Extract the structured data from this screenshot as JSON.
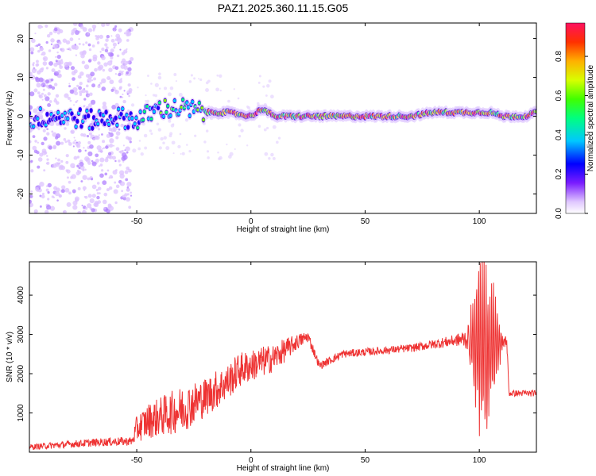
{
  "title": "PAZ1.2025.360.11.15.G05",
  "chart_data": [
    {
      "type": "heatmap",
      "xlabel": "Height of straight line (km)",
      "ylabel": "Frequency (Hz)",
      "xlim": [
        -97,
        125
      ],
      "ylim": [
        -25,
        24
      ],
      "xticks": [
        -50,
        0,
        50,
        100
      ],
      "xtick_labels": [
        "-50",
        "0",
        "50",
        "100"
      ],
      "yticks": [
        -20,
        -10,
        0,
        10,
        20
      ],
      "ytick_labels": [
        "-20",
        "-10",
        "0",
        "10",
        "20"
      ],
      "ridge": {
        "x": [
          -97,
          -90,
          -80,
          -70,
          -60,
          -50,
          -40,
          -30,
          -20,
          -10,
          0,
          5,
          10,
          20,
          30,
          40,
          50,
          60,
          70,
          80,
          90,
          100,
          105,
          110,
          120,
          125
        ],
        "freq": [
          -1,
          0,
          0,
          -1,
          0,
          -1,
          2,
          2,
          1,
          1,
          0,
          2,
          0,
          0,
          0,
          0,
          0,
          0,
          0,
          1,
          1,
          1,
          1,
          0,
          0,
          1
        ]
      },
      "colorbar": {
        "label": "Normalized spectral amplitude",
        "range": [
          0,
          0.97
        ],
        "ticks": [
          0,
          0.2,
          0.4,
          0.6,
          0.8
        ],
        "tick_labels": [
          "0.0",
          "0.2",
          "0.4",
          "0.6",
          "0.8"
        ]
      }
    },
    {
      "type": "line",
      "xlabel": "Height of straight line (km)",
      "ylabel": "SNR (10 * v/v)",
      "xlim": [
        -97,
        125
      ],
      "ylim": [
        0,
        4850
      ],
      "xticks": [
        -50,
        0,
        50,
        100
      ],
      "xtick_labels": [
        "-50",
        "0",
        "50",
        "100"
      ],
      "yticks": [
        1000,
        2000,
        3000,
        4000
      ],
      "ytick_labels": [
        "1000",
        "2000",
        "3000",
        "4000"
      ],
      "series": [
        {
          "name": "SNR",
          "color": "#ee3333",
          "x": [
            -97,
            -90,
            -80,
            -70,
            -60,
            -52,
            -50,
            -45,
            -40,
            -35,
            -30,
            -25,
            -20,
            -15,
            -10,
            -5,
            0,
            5,
            10,
            15,
            20,
            25,
            30,
            40,
            50,
            60,
            70,
            80,
            90,
            95,
            98,
            100,
            103,
            106,
            110,
            112,
            113,
            120,
            125
          ],
          "y": [
            130,
            160,
            200,
            240,
            270,
            280,
            600,
            800,
            900,
            1000,
            1100,
            1250,
            1400,
            1600,
            1800,
            2100,
            2200,
            2300,
            2400,
            2600,
            2800,
            2950,
            2200,
            2500,
            2550,
            2600,
            2650,
            2750,
            2850,
            2900,
            2800,
            2700,
            2600,
            2700,
            2800,
            2850,
            1500,
            1500,
            1500
          ],
          "noise": [
            70,
            80,
            90,
            100,
            110,
            110,
            350,
            450,
            500,
            550,
            600,
            550,
            500,
            500,
            450,
            450,
            400,
            400,
            350,
            300,
            200,
            150,
            100,
            100,
            100,
            100,
            100,
            120,
            150,
            300,
            1500,
            2200,
            2200,
            1500,
            200,
            150,
            80,
            80,
            80
          ]
        }
      ]
    }
  ],
  "colors": {
    "snr_line": "#ee3333",
    "heat_low": "#d9b8ff",
    "heat_mid": "#6b00e6",
    "heat_high": "#ff2050"
  }
}
